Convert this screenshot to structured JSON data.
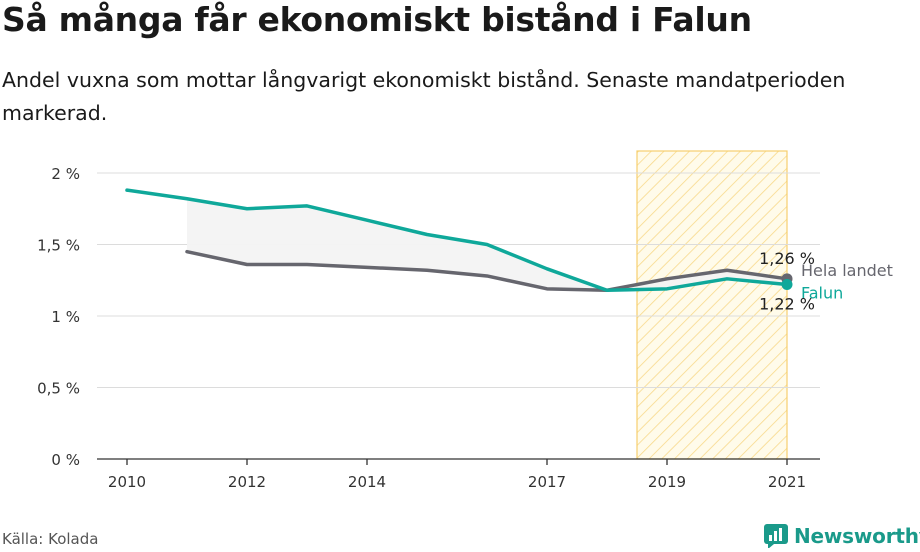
{
  "title": "Så många får ekonomiskt bistånd i Falun",
  "subtitle": "Andel vuxna som mottar långvarigt ekonomiskt bistånd. Senaste mandatperioden markerad.",
  "source": "Källa: Kolada",
  "brand": "Newsworthy",
  "chart_data": {
    "type": "line",
    "x_tick_labels": [
      "2010",
      "2012",
      "2014",
      "2017",
      "2019",
      "2021"
    ],
    "y_tick_labels": [
      "0 %",
      "0,5 %",
      "1 %",
      "1,5 %",
      "2 %"
    ],
    "y_ticks": [
      0,
      0.5,
      1,
      1.5,
      2
    ],
    "xlim": [
      2010,
      2021
    ],
    "ylim": [
      0,
      2
    ],
    "grid": true,
    "highlight_period": [
      2018.5,
      2021
    ],
    "series": [
      {
        "name": "Falun",
        "color": "#0fa89a",
        "x": [
          2010,
          2011,
          2012,
          2013,
          2014,
          2015,
          2016,
          2017,
          2018,
          2019,
          2020,
          2021
        ],
        "y": [
          1.88,
          1.82,
          1.75,
          1.77,
          1.67,
          1.57,
          1.5,
          1.33,
          1.18,
          1.19,
          1.26,
          1.22
        ],
        "end_label": "1,22 %"
      },
      {
        "name": "Hela landet",
        "color": "#66666e",
        "x": [
          2011,
          2012,
          2013,
          2014,
          2015,
          2016,
          2017,
          2018,
          2019,
          2020,
          2021
        ],
        "y": [
          1.45,
          1.36,
          1.36,
          1.34,
          1.32,
          1.28,
          1.19,
          1.18,
          1.26,
          1.32,
          1.26
        ],
        "end_label": "1,26 %"
      }
    ]
  }
}
